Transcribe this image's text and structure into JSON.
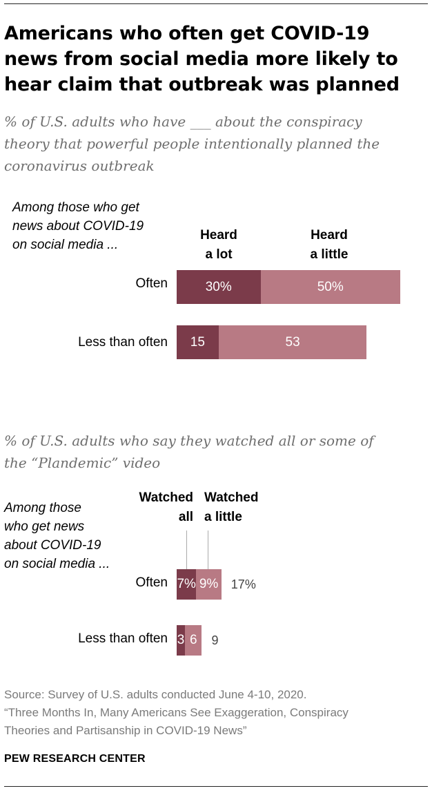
{
  "title_lines": [
    "Americans who often get COVID-19",
    "news from social media more likely to",
    "hear claim that outbreak was planned"
  ],
  "colors": {
    "dark": "#7b3b4a",
    "light": "#b87a84"
  },
  "chart_data": [
    {
      "type": "bar",
      "stacked": true,
      "orientation": "horizontal",
      "subtitle_lines": [
        "% of U.S. adults who have ___ about the conspiracy",
        "theory that powerful people intentionally planned the",
        "coronavirus outbreak"
      ],
      "group_label_lines": [
        "Among those who get",
        "news about COVID-19",
        "on social media ..."
      ],
      "categories": [
        "Often",
        "Less than often"
      ],
      "series": [
        {
          "name_lines": [
            "Heard",
            "a lot"
          ],
          "values": [
            30,
            15
          ],
          "labels": [
            "30%",
            "15"
          ]
        },
        {
          "name_lines": [
            "Heard",
            "a little"
          ],
          "values": [
            50,
            53
          ],
          "labels": [
            "50%",
            "53"
          ]
        }
      ],
      "totals": [],
      "xlim": [
        0,
        100
      ]
    },
    {
      "type": "bar",
      "stacked": true,
      "orientation": "horizontal",
      "subtitle_lines": [
        "% of U.S. adults who say they watched all or some of",
        "the “Plandemic” video"
      ],
      "group_label_lines": [
        "Among those",
        "who get news",
        "about COVID-19",
        "on social media ..."
      ],
      "categories": [
        "Often",
        "Less than often"
      ],
      "series": [
        {
          "name_lines": [
            "Watched",
            "all"
          ],
          "values": [
            7,
            3
          ],
          "labels": [
            "7%",
            "3"
          ]
        },
        {
          "name_lines": [
            "Watched",
            "a little"
          ],
          "values": [
            9,
            6
          ],
          "labels": [
            "9%",
            "6"
          ]
        }
      ],
      "totals": [
        "17%",
        "9"
      ],
      "xlim": [
        0,
        100
      ]
    }
  ],
  "source_lines": [
    "Source: Survey of U.S. adults conducted June 4-10, 2020.",
    "“Three Months In, Many Americans See Exaggeration, Conspiracy",
    "Theories and Partisanship in COVID-19 News”"
  ],
  "org": "PEW RESEARCH CENTER"
}
